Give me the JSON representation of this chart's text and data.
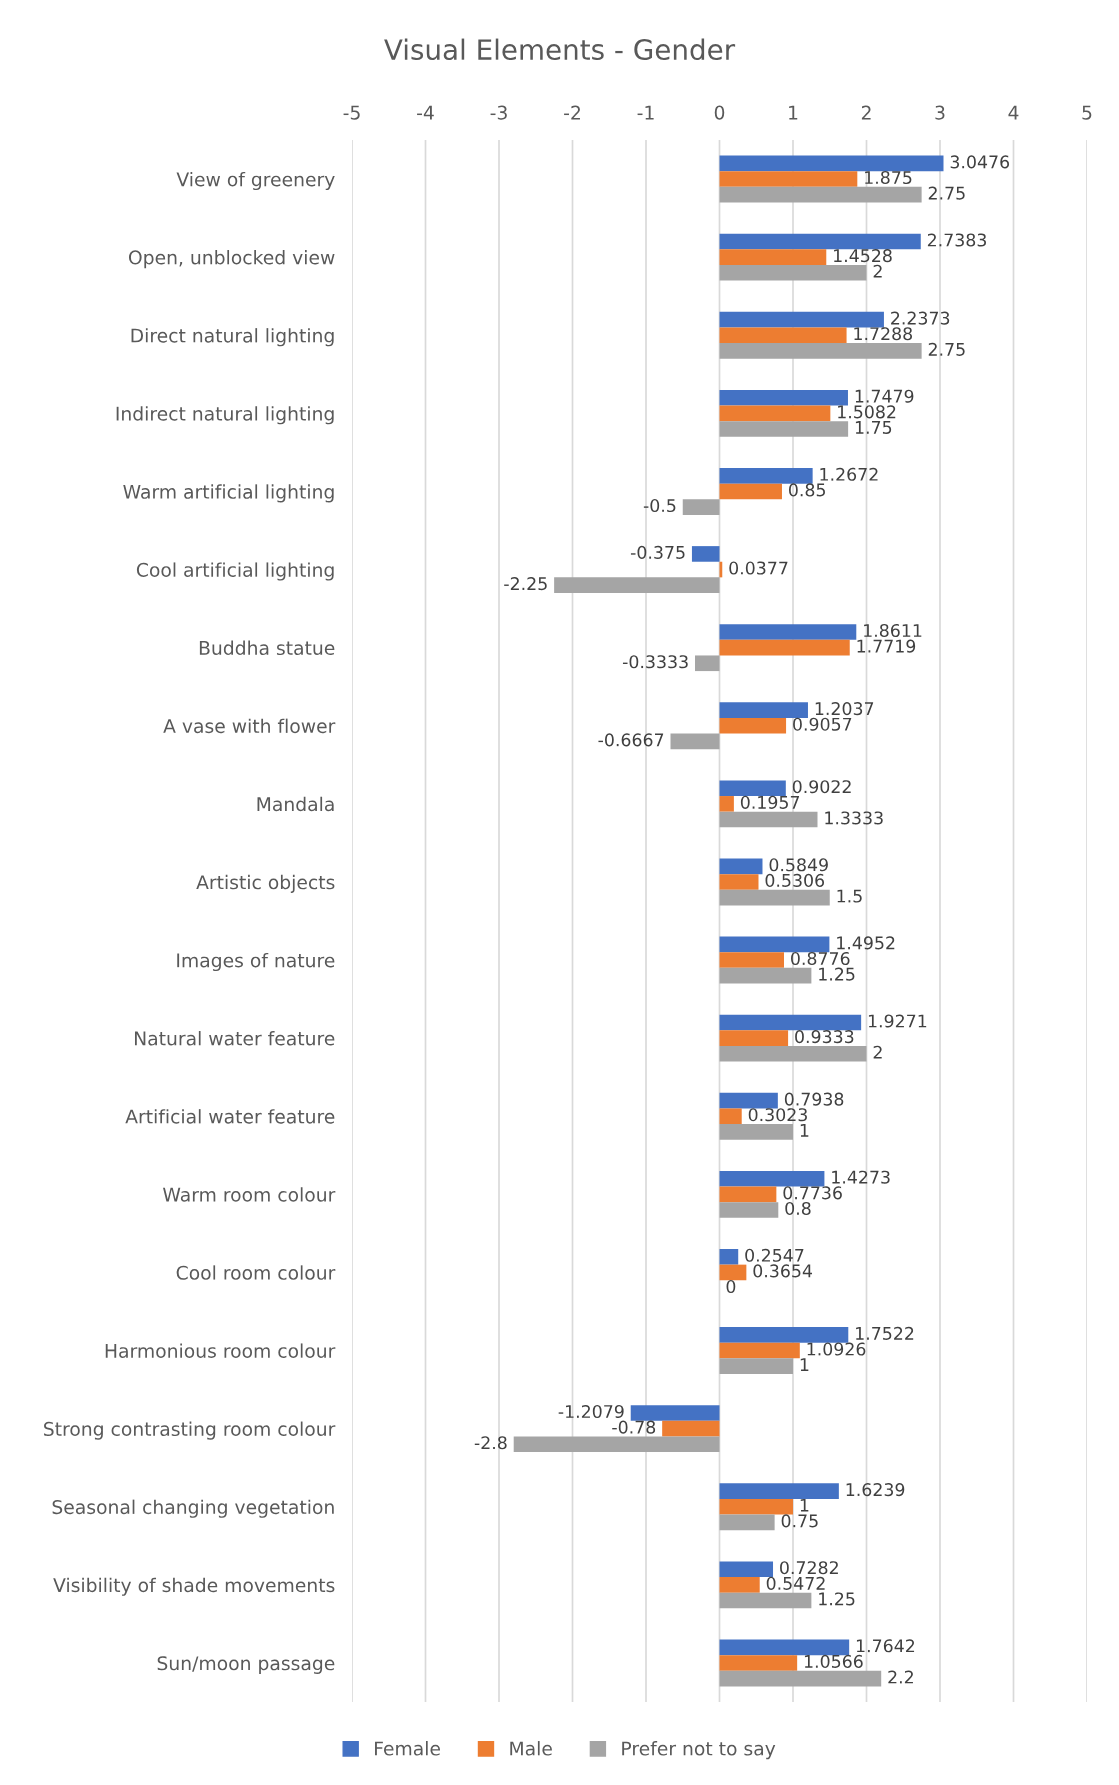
{
  "chart_data": {
    "type": "bar",
    "orientation": "horizontal",
    "title": "Visual Elements - Gender",
    "categories": [
      "View of greenery",
      "Open, unblocked view",
      "Direct natural lighting",
      "Indirect natural lighting",
      "Warm artificial lighting",
      "Cool artificial lighting",
      "Buddha statue",
      "A vase with flower",
      "Mandala",
      "Artistic objects",
      "Images of nature",
      "Natural water feature",
      "Artificial water feature",
      "Warm room colour",
      "Cool room colour",
      "Harmonious room colour",
      "Strong contrasting room colour",
      "Seasonal changing vegetation",
      "Visibility of shade movements",
      "Sun/moon passage"
    ],
    "series": [
      {
        "name": "Female",
        "color": "#4472c4",
        "values": [
          3.0476,
          2.7383,
          2.2373,
          1.7479,
          1.2672,
          -0.375,
          1.8611,
          1.2037,
          0.9022,
          0.5849,
          1.4952,
          1.9271,
          0.7938,
          1.4273,
          0.2547,
          1.7522,
          -1.2079,
          1.6239,
          0.7282,
          1.7642
        ]
      },
      {
        "name": "Male",
        "color": "#ed7d31",
        "values": [
          1.875,
          1.4528,
          1.7288,
          1.5082,
          0.85,
          0.0377,
          1.7719,
          0.9057,
          0.1957,
          0.5306,
          0.8776,
          0.9333,
          0.3023,
          0.7736,
          0.3654,
          1.0926,
          -0.78,
          1,
          0.5472,
          1.0566
        ]
      },
      {
        "name": "Prefer not to say",
        "color": "#a5a5a5",
        "values": [
          2.75,
          2,
          2.75,
          1.75,
          -0.5,
          -2.25,
          -0.3333,
          -0.6667,
          1.3333,
          1.5,
          1.25,
          2,
          1,
          0.8,
          0,
          1,
          -2.8,
          0.75,
          1.25,
          2.2
        ]
      }
    ],
    "xlim": [
      -5,
      5
    ],
    "xticks": [
      -5,
      -4,
      -3,
      -2,
      -1,
      0,
      1,
      2,
      3,
      4,
      5
    ],
    "grid": "x",
    "legend": "bottom",
    "data_labels": true
  }
}
